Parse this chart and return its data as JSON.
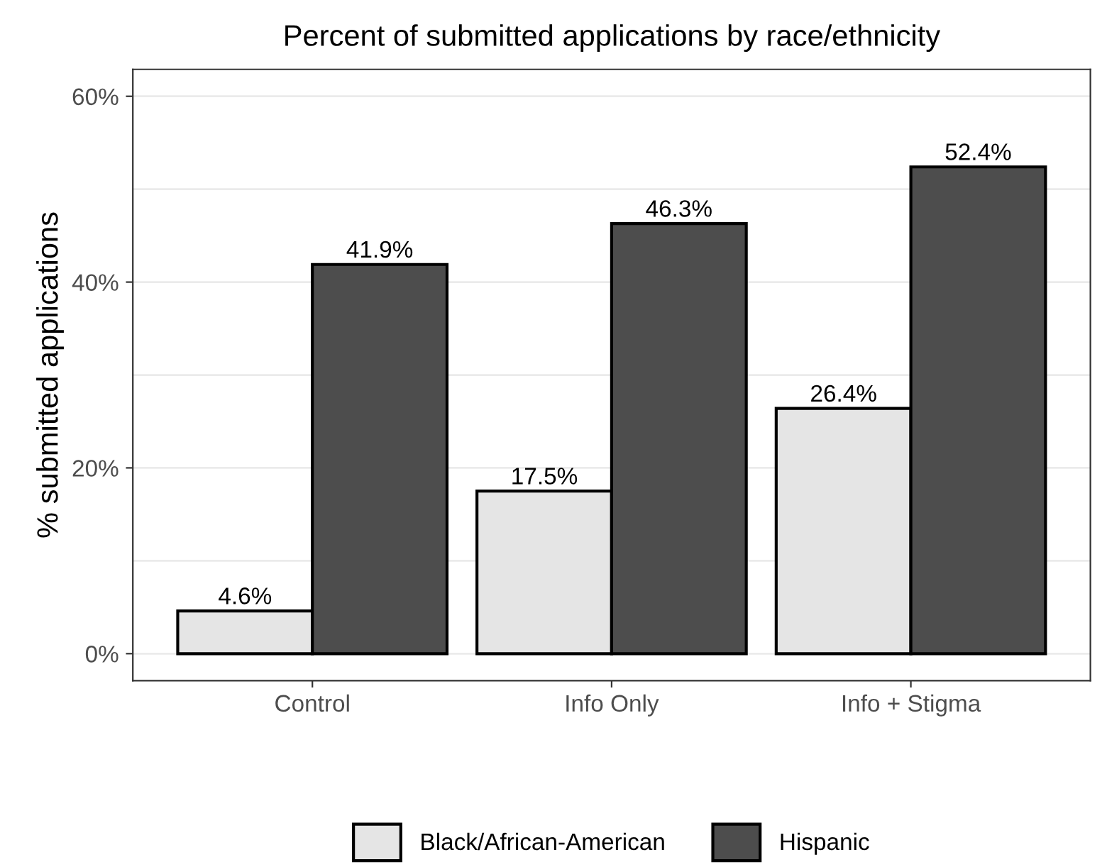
{
  "chart_data": {
    "type": "bar",
    "title": "Percent of submitted applications by race/ethnicity",
    "ylabel": "% submitted applications",
    "categories": [
      "Control",
      "Info Only",
      "Info + Stigma"
    ],
    "series": [
      {
        "name": "Black/African-American",
        "color": "#e5e5e5",
        "values": [
          4.6,
          17.5,
          26.4
        ],
        "value_labels": [
          "4.6%",
          "17.5%",
          "26.4%"
        ]
      },
      {
        "name": "Hispanic",
        "color": "#4d4d4d",
        "values": [
          41.9,
          46.3,
          52.4
        ],
        "value_labels": [
          "41.9%",
          "46.3%",
          "52.4%"
        ]
      }
    ],
    "ylim": [
      -2.9,
      62.9
    ],
    "yticks": [
      {
        "value": 0,
        "label": "0%"
      },
      {
        "value": 10,
        "label": null
      },
      {
        "value": 20,
        "label": "20%"
      },
      {
        "value": 30,
        "label": null
      },
      {
        "value": 40,
        "label": "40%"
      },
      {
        "value": 50,
        "label": null
      },
      {
        "value": 60,
        "label": "60%"
      }
    ],
    "grid": "y",
    "legend": "bottom"
  }
}
